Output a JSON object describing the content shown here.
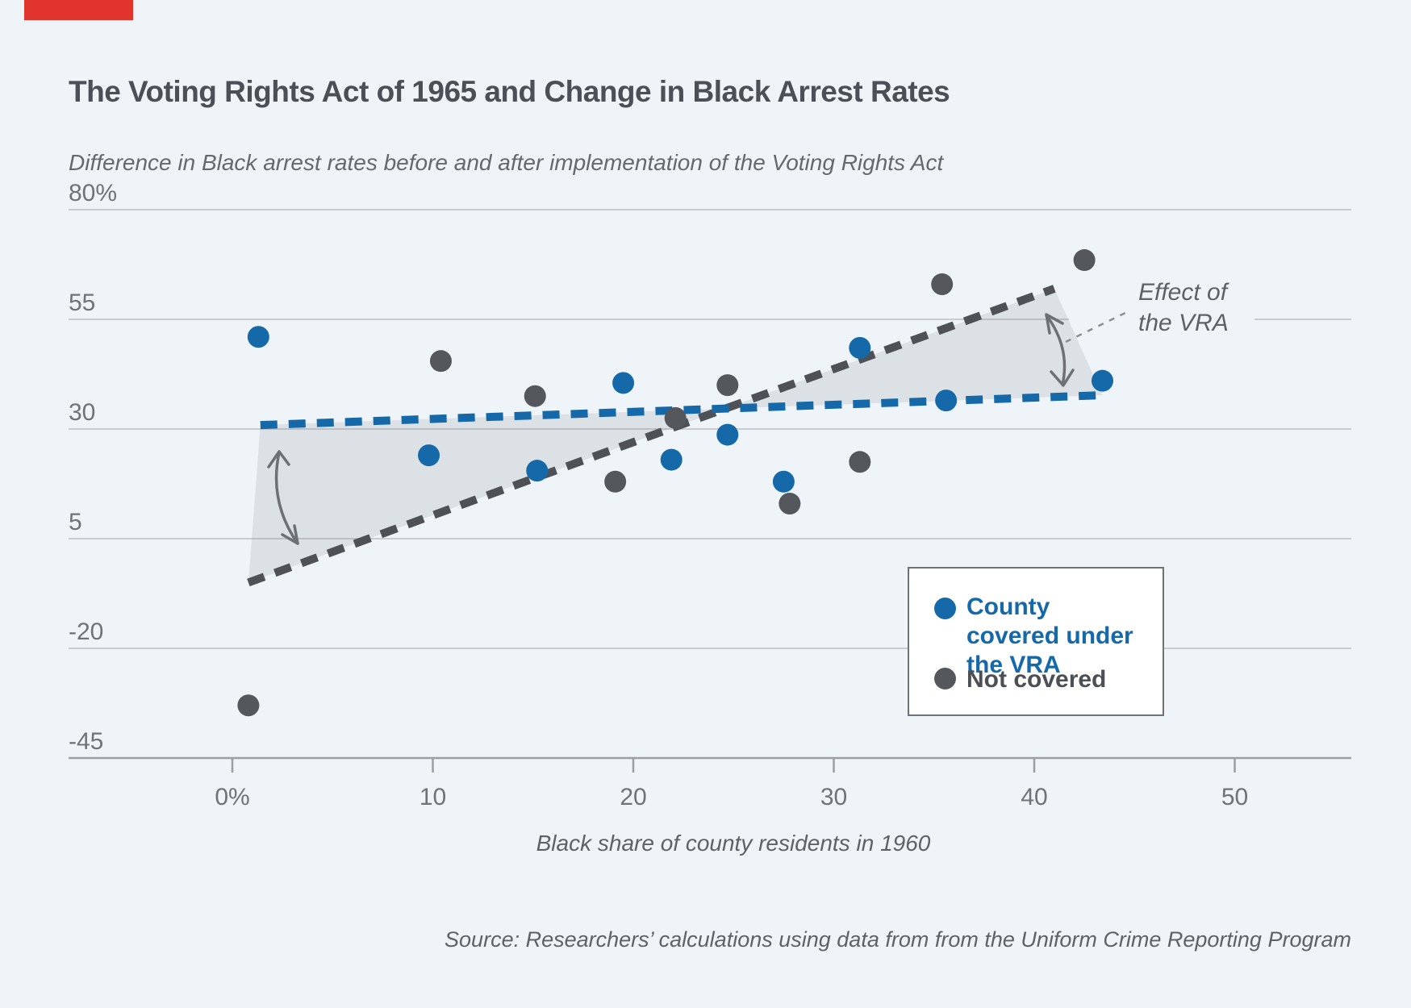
{
  "title": "The Voting Rights Act of 1965 and Change in Black Arrest Rates",
  "subtitle": "Difference in Black arrest rates before and after implementation of the Voting Rights Act",
  "x_axis_label": "Black share of county residents in 1960",
  "source": "Source: Researchers’ calculations using data from from the Uniform Crime Reporting Program",
  "annotation": {
    "line1": "Effect of",
    "line2": "the VRA"
  },
  "legend": {
    "items": [
      {
        "label": "County covered under the VRA",
        "color": "#1569a9"
      },
      {
        "label": "Not covered",
        "color": "#54585c"
      }
    ]
  },
  "colors": {
    "background": "#eff4f8",
    "red_accent": "#e1342c",
    "blue": "#1569a9",
    "dark_gray": "#54585c",
    "gridline": "#c9cdd2",
    "axis_line": "#9b9fa4",
    "tick_label": "#6e7378",
    "arrow": "#6d7175"
  },
  "chart_data": {
    "type": "scatter",
    "title": "The Voting Rights Act of 1965 and Change in Black Arrest Rates",
    "xlabel": "Black share of county residents in 1960",
    "ylabel": "Difference in Black arrest rates before and after implementation of the Voting Rights Act",
    "xlim": [
      -8,
      56
    ],
    "ylim": [
      -45,
      80
    ],
    "grid": "horizontal",
    "legend_position": "lower right",
    "x_ticks": [
      {
        "v": 0,
        "label": "0%"
      },
      {
        "v": 10,
        "label": "10"
      },
      {
        "v": 20,
        "label": "20"
      },
      {
        "v": 30,
        "label": "30"
      },
      {
        "v": 40,
        "label": "40"
      },
      {
        "v": 50,
        "label": "50"
      }
    ],
    "y_ticks": [
      {
        "v": 80,
        "label": "80%"
      },
      {
        "v": 55,
        "label": "55"
      },
      {
        "v": 30,
        "label": "30"
      },
      {
        "v": 5,
        "label": "5"
      },
      {
        "v": -20,
        "label": "-20"
      },
      {
        "v": -45,
        "label": "-45"
      }
    ],
    "series": [
      {
        "name": "County covered under the VRA",
        "color": "#1569a9",
        "points": [
          [
            1.3,
            51
          ],
          [
            9.8,
            24
          ],
          [
            15.2,
            20.5
          ],
          [
            19.5,
            40.5
          ],
          [
            21.9,
            23
          ],
          [
            24.7,
            28.7
          ],
          [
            27.5,
            18
          ],
          [
            31.3,
            48.5
          ],
          [
            35.6,
            36.5
          ],
          [
            43.4,
            41
          ]
        ]
      },
      {
        "name": "Not covered",
        "color": "#54585c",
        "points": [
          [
            0.8,
            -33
          ],
          [
            10.4,
            45.5
          ],
          [
            15.1,
            37.5
          ],
          [
            19.1,
            18
          ],
          [
            22.1,
            32.5
          ],
          [
            24.7,
            40
          ],
          [
            27.8,
            13
          ],
          [
            31.3,
            22.5
          ],
          [
            35.4,
            63
          ],
          [
            42.5,
            68.5
          ]
        ]
      }
    ],
    "trend_lines": [
      {
        "series": "County covered under the VRA",
        "color": "#1569a9",
        "x1": 1.4,
        "y1": 30.9,
        "x2": 43.4,
        "y2": 37.7
      },
      {
        "series": "Not covered",
        "color": "#4e5256",
        "x1": 0.8,
        "y1": -5,
        "x2": 41,
        "y2": 62
      }
    ],
    "annotations": [
      "Effect of the VRA"
    ]
  }
}
